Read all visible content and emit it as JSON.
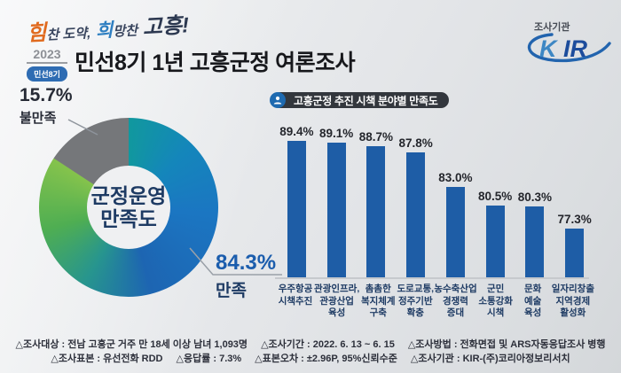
{
  "header": {
    "slogan": {
      "part1": "힘",
      "part2": "찬 도약,",
      "part3": "희",
      "part4": "망찬",
      "part5": "고흥!"
    },
    "year_badge": {
      "year": "2023",
      "label": "민선8기"
    },
    "title": "민선8기 1년 고흥군정 여론조사",
    "agency": {
      "caption": "조사기관",
      "logo_k": "K",
      "logo_ir": "IR"
    }
  },
  "donut": {
    "center_line1": "군정운영",
    "center_line2": "만족도",
    "satisfied": {
      "pct": "84.3%",
      "label": "만족"
    },
    "dissatisfied": {
      "pct": "15.7%",
      "label": "불만족"
    }
  },
  "bar_section": {
    "header": "고흥군정 추진 시책 분야별 만족도"
  },
  "footer": {
    "line1": [
      "△조사대상 : 전남 고흥군 거주 만 18세 이상 남녀 1,093명",
      "△조사기간 : 2022. 6. 13 ~ 6. 15",
      "△조사방법 : 전화면접 및 ARS자동응답조사 병행"
    ],
    "line2": [
      "△조사표본 : 유선전화 RDD",
      "△응답률 : 7.3%",
      "△표본오차 : ±2.96P, 95%신뢰수준",
      "△조사기관 : KIR-(주)코리아정보리서치"
    ]
  },
  "colors": {
    "bar_blue": "#1e5da6",
    "donut_gray": "#75777a",
    "satisfied_blue": "#1b5dad",
    "navy_text": "#1d3a63",
    "pill_dark": "#33373d",
    "badge_blue": "#2e6cb3",
    "kir_light_blue": "#3d87c4",
    "kir_dark_blue": "#1c4c9c"
  },
  "chart_data": [
    {
      "type": "pie",
      "variant": "donut",
      "title": "군정운영 만족도",
      "unit": "%",
      "slices": [
        {
          "label": "만족",
          "value": 84.3,
          "color": "gradient #11989e→#1b76c2→#4fae52→#85c34c"
        },
        {
          "label": "불만족",
          "value": 15.7,
          "color": "#75777a"
        }
      ]
    },
    {
      "type": "bar",
      "title": "고흥군정 추진 시책 분야별 만족도",
      "unit": "%",
      "categories": [
        "우주항공 시책추진",
        "관광인프라, 관광산업 육성",
        "촘촘한 복지체계 구축",
        "도로교통, 정주기반 확충",
        "농수축산업 경쟁력 증대",
        "군민 소통강화 시책",
        "문화 예술 육성",
        "일자리창출 지역경제 활성화"
      ],
      "category_lines": [
        [
          "우주항공",
          "시책추진"
        ],
        [
          "관광인프라,",
          "관광산업",
          "육성"
        ],
        [
          "촘촘한",
          "복지체계",
          "구축"
        ],
        [
          "도로교통,",
          "정주기반",
          "확충"
        ],
        [
          "농수축산업",
          "경쟁력",
          "증대"
        ],
        [
          "군민",
          "소통강화",
          "시책"
        ],
        [
          "문화",
          "예술",
          "육성"
        ],
        [
          "일자리창출",
          "지역경제",
          "활성화"
        ]
      ],
      "values": [
        89.4,
        89.1,
        88.7,
        87.8,
        83.0,
        80.5,
        80.3,
        77.3
      ],
      "value_labels_shown": true,
      "ylim": [
        70.6,
        92
      ],
      "grid": false,
      "legend": false,
      "bar_color": "#1e5da6"
    }
  ]
}
